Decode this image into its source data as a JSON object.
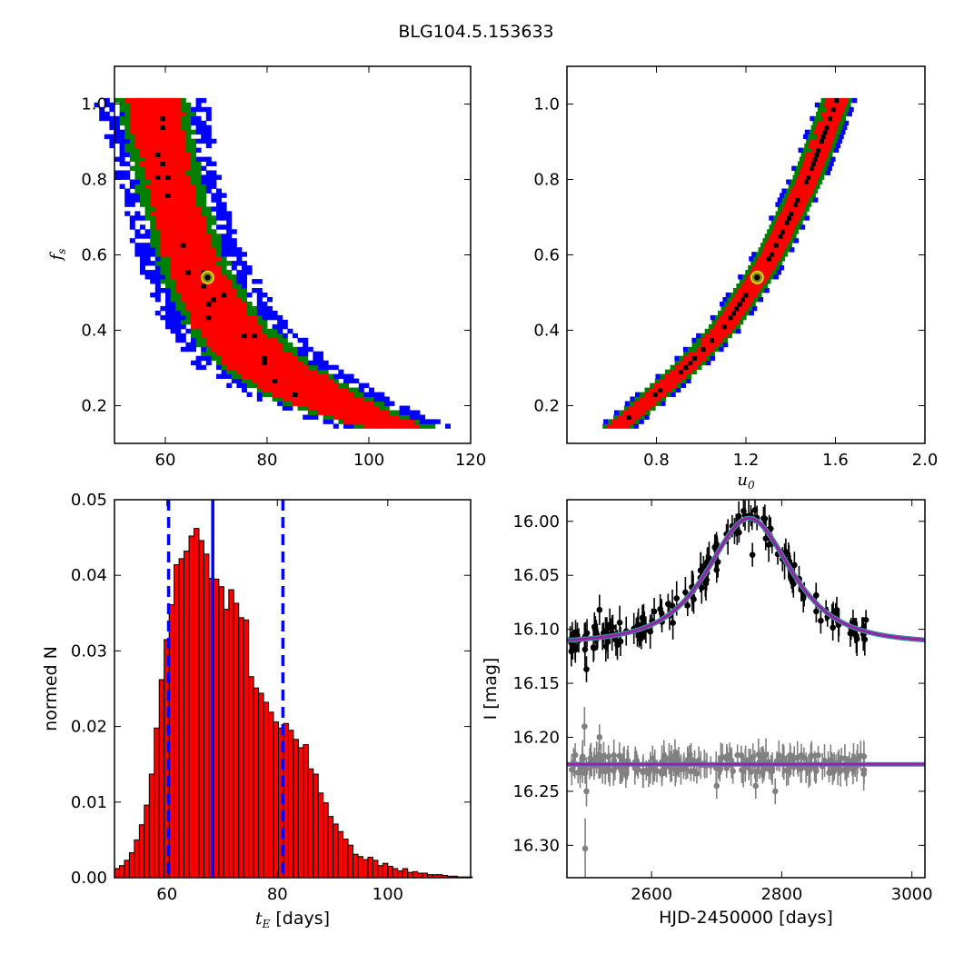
{
  "figure": {
    "title": "BLG104.5.153633"
  },
  "colors": {
    "black": "#000000",
    "red": "#ff0000",
    "green": "#008000",
    "blue": "#0000ff",
    "grey": "#808080",
    "model": "#9b1fa0",
    "model_under": "#3a8aa8",
    "marker_face": "#8a8a1a",
    "marker_edge": "#d8d810"
  },
  "chart_data": [
    {
      "id": "tE_fs",
      "type": "heatmap",
      "title": "",
      "xlabel": "",
      "ylabel": "f_s",
      "ylabel_main": "f",
      "ylabel_sub": "s",
      "xlim": [
        50,
        120
      ],
      "ylim": [
        0.1,
        1.1
      ],
      "xticks": [
        60,
        80,
        100,
        120
      ],
      "xtick_labels": [
        "60",
        "80",
        "100",
        "120"
      ],
      "yticks": [
        0.2,
        0.4,
        0.6,
        0.8,
        1.0
      ],
      "ytick_labels": [
        "0.2",
        "0.4",
        "0.6",
        "0.8",
        "1.0"
      ],
      "confidence_colors": [
        "#000000",
        "#ff0000",
        "#008000",
        "#0000ff"
      ],
      "band": {
        "fs_range": [
          0.14,
          1.01
        ],
        "centers": [
          [
            0.14,
            104
          ],
          [
            0.2,
            92
          ],
          [
            0.3,
            79
          ],
          [
            0.4,
            72
          ],
          [
            0.5,
            67.5
          ],
          [
            0.6,
            64
          ],
          [
            0.7,
            62
          ],
          [
            0.8,
            60
          ],
          [
            0.9,
            58.5
          ],
          [
            1.01,
            57
          ]
        ],
        "halfwidths": [
          [
            0.14,
            6
          ],
          [
            0.2,
            8
          ],
          [
            0.3,
            8
          ],
          [
            0.4,
            6.5
          ],
          [
            0.6,
            5
          ],
          [
            0.8,
            4.5
          ],
          [
            1.01,
            5.5
          ]
        ],
        "green_extra": 1.8,
        "blue_extra": 3.8
      },
      "best_fit": {
        "tE": 68.3,
        "fs": 0.54
      }
    },
    {
      "id": "u0_fs",
      "type": "heatmap",
      "title": "",
      "xlabel": "u_0",
      "ylabel": "",
      "xlabel_main": "u",
      "xlabel_sub": "0",
      "xlim": [
        0.4,
        2.0
      ],
      "ylim": [
        0.1,
        1.1
      ],
      "xticks": [
        0.8,
        1.2,
        1.6,
        2.0
      ],
      "xtick_labels": [
        "0.8",
        "1.2",
        "1.6",
        "2.0"
      ],
      "yticks": [
        0.2,
        0.4,
        0.6,
        0.8,
        1.0
      ],
      "ytick_labels": [
        "0.2",
        "0.4",
        "0.6",
        "0.8",
        "1.0"
      ],
      "band": {
        "fs_range": [
          0.14,
          1.01
        ],
        "centers": [
          [
            0.14,
            0.62
          ],
          [
            0.2,
            0.74
          ],
          [
            0.3,
            0.93
          ],
          [
            0.4,
            1.09
          ],
          [
            0.54,
            1.25
          ],
          [
            0.6,
            1.31
          ],
          [
            0.8,
            1.47
          ],
          [
            1.01,
            1.6
          ]
        ],
        "red_halfwidth": 0.045,
        "green_extra": 0.022,
        "blue_extra": 0.014
      },
      "best_fit": {
        "u0": 1.25,
        "fs": 0.54
      }
    },
    {
      "id": "tE_hist",
      "type": "bar",
      "title": "",
      "xlabel": "t_E [days]",
      "xlabel_main": "t",
      "xlabel_sub": "E",
      "xlabel_unit": " [days]",
      "ylabel": "normed N",
      "xlim": [
        50.5,
        115
      ],
      "ylim": [
        0,
        0.05
      ],
      "xticks": [
        60,
        80,
        100
      ],
      "xtick_labels": [
        "60",
        "80",
        "100"
      ],
      "yticks": [
        0,
        0.01,
        0.02,
        0.03,
        0.04,
        0.05
      ],
      "ytick_labels": [
        "0.00",
        "0.01",
        "0.02",
        "0.03",
        "0.04",
        "0.05"
      ],
      "bin_start": 50.5,
      "bin_width": 0.9,
      "values": [
        0.0012,
        0.0016,
        0.0023,
        0.0033,
        0.005,
        0.007,
        0.0096,
        0.0137,
        0.0198,
        0.0262,
        0.0315,
        0.0361,
        0.0414,
        0.0422,
        0.0432,
        0.0452,
        0.0462,
        0.0446,
        0.0428,
        0.0396,
        0.0395,
        0.0385,
        0.0355,
        0.0381,
        0.0363,
        0.0344,
        0.0341,
        0.0266,
        0.0251,
        0.0244,
        0.0232,
        0.0219,
        0.0206,
        0.0198,
        0.0204,
        0.0195,
        0.0183,
        0.0172,
        0.0176,
        0.0144,
        0.0137,
        0.0112,
        0.0099,
        0.0081,
        0.0071,
        0.0061,
        0.0051,
        0.0043,
        0.0031,
        0.0028,
        0.0024,
        0.0027,
        0.0023,
        0.0016,
        0.0019,
        0.0015,
        0.0012,
        0.0009,
        0.0012,
        0.0007,
        0.0008,
        0.0006,
        0.0006,
        0.0004,
        0.0004,
        0.0004,
        0.0003,
        0.0002,
        0.0002,
        0.0001,
        0.0001,
        0.0001
      ],
      "median_line": 68.3,
      "interval_lines": [
        60.3,
        81.0
      ]
    },
    {
      "id": "lightcurve",
      "type": "scatter",
      "title": "",
      "xlabel": "HJD-2450000 [days]",
      "ylabel": "I [mag]",
      "xlim": [
        2470,
        3020
      ],
      "ylim": [
        16.33,
        15.98
      ],
      "y_inverted": true,
      "xticks": [
        2600,
        2800,
        3000
      ],
      "xtick_labels": [
        "2600",
        "2800",
        "3000"
      ],
      "yticks": [
        16.0,
        16.05,
        16.1,
        16.15,
        16.2,
        16.25,
        16.3
      ],
      "ytick_labels": [
        "16.00",
        "16.05",
        "16.10",
        "16.15",
        "16.20",
        "16.25",
        "16.30"
      ],
      "model": {
        "t0": 2750,
        "tE": 68.3,
        "u0": 1.25,
        "fs": 0.54,
        "baseline": 16.113
      },
      "residual_line": 16.225,
      "data_series": {
        "x_range": [
          2475,
          2930
        ],
        "n": 160,
        "seed": 7,
        "error": 0.013,
        "scatter": 0.011
      },
      "residual_series": {
        "x_range": [
          2475,
          2930
        ],
        "n": 210,
        "seed": 11,
        "error": 0.012,
        "scatter": 0.009
      },
      "outliers": [
        [
          2483,
          16.119,
          0.012
        ],
        [
          2497,
          16.108,
          0.014
        ],
        [
          2500,
          16.137,
          0.012
        ],
        [
          2520,
          16.082,
          0.014
        ],
        [
          2700,
          16.045,
          0.012
        ],
        [
          2755,
          16.031,
          0.011
        ],
        [
          2860,
          16.092,
          0.012
        ]
      ],
      "residual_outliers": [
        [
          2498,
          16.303,
          0.028
        ],
        [
          2497,
          16.19,
          0.018
        ],
        [
          2500,
          16.25,
          0.014
        ],
        [
          2520,
          16.2,
          0.012
        ],
        [
          2700,
          16.245,
          0.012
        ],
        [
          2760,
          16.245,
          0.012
        ],
        [
          2790,
          16.25,
          0.012
        ]
      ]
    }
  ]
}
